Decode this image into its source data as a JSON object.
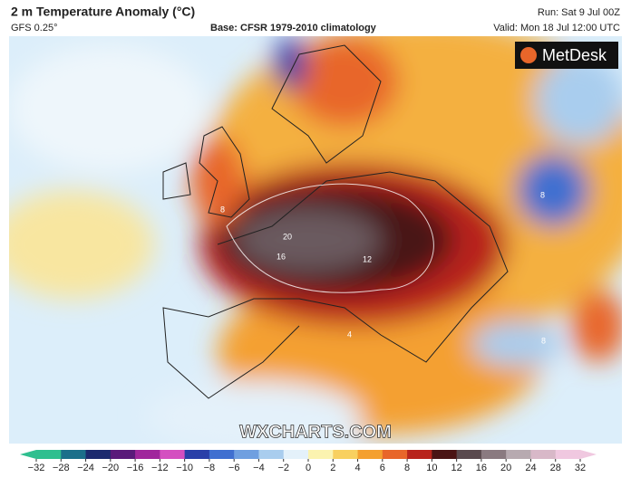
{
  "header": {
    "title": "2 m Temperature Anomaly (°C)",
    "model": "GFS 0.25°",
    "base": "Base: CFSR 1979-2010 climatology",
    "run": "Run: Sat 9 Jul 00Z",
    "valid": "Valid: Mon 18 Jul 12:00 UTC"
  },
  "logo": "MetDesk",
  "watermark": "WXCHARTS.COM",
  "map_labels": [
    20,
    16,
    12,
    8,
    8,
    8,
    4
  ],
  "colorbar": {
    "ticks": [
      {
        "value": -32,
        "label": "−32"
      },
      {
        "value": -28,
        "label": "−28"
      },
      {
        "value": -24,
        "label": "−24"
      },
      {
        "value": -20,
        "label": "−20"
      },
      {
        "value": -16,
        "label": "−16"
      },
      {
        "value": -12,
        "label": "−12"
      },
      {
        "value": -10,
        "label": "−10"
      },
      {
        "value": -8,
        "label": "−8"
      },
      {
        "value": -6,
        "label": "−6"
      },
      {
        "value": -4,
        "label": "−4"
      },
      {
        "value": -2,
        "label": "−2"
      },
      0,
      2,
      4,
      6,
      8,
      10,
      12,
      16,
      20,
      24,
      28,
      32
    ],
    "colors": [
      "#2fbf8f",
      "#1b6f8a",
      "#1c2a6e",
      "#5a1a7a",
      "#a0269c",
      "#d44fc0",
      "#2a3fa8",
      "#3f6fd0",
      "#6f9fe0",
      "#a9cdee",
      "#e4f1fa",
      "#fbf3b0",
      "#f8d060",
      "#f4a030",
      "#e8662a",
      "#b8241c",
      "#4a1414",
      "#5a4a4e",
      "#8a7a80",
      "#b7aab0",
      "#d8b8c8",
      "#f0c8e0"
    ]
  }
}
